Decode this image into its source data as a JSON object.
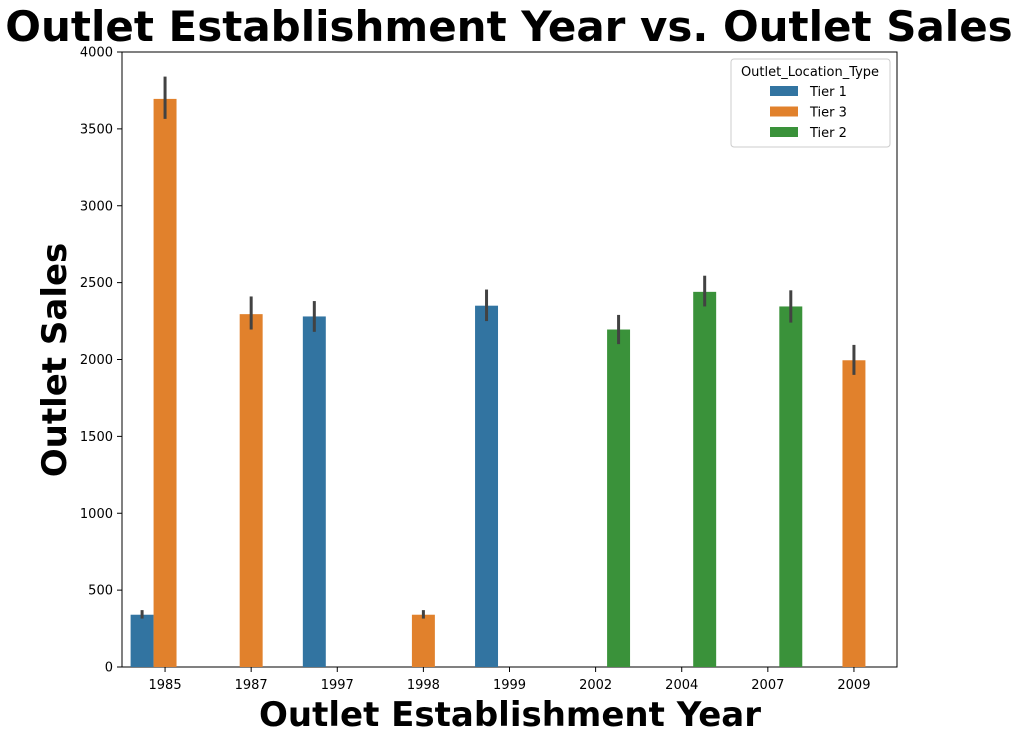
{
  "chart_data": {
    "type": "bar",
    "title": "Outlet Establishment Year vs. Outlet Sales",
    "xlabel": "Outlet Establishment Year",
    "ylabel": "Outlet Sales",
    "categories": [
      "1985",
      "1987",
      "1997",
      "1998",
      "1999",
      "2002",
      "2004",
      "2007",
      "2009"
    ],
    "ylim": [
      0,
      4000
    ],
    "yticks": [
      0,
      500,
      1000,
      1500,
      2000,
      2500,
      3000,
      3500,
      4000
    ],
    "legend": {
      "title": "Outlet_Location_Type",
      "placement": "top-right"
    },
    "series": [
      {
        "name": "Tier 1",
        "color": "#3274a1",
        "values": [
          340,
          null,
          2280,
          null,
          2350,
          null,
          null,
          null,
          null
        ],
        "err_low": [
          315,
          null,
          2180,
          null,
          2250,
          null,
          null,
          null,
          null
        ],
        "err_high": [
          370,
          null,
          2380,
          null,
          2455,
          null,
          null,
          null,
          null
        ]
      },
      {
        "name": "Tier 3",
        "color": "#e1812c",
        "values": [
          3695,
          2295,
          null,
          340,
          null,
          null,
          null,
          null,
          1995
        ],
        "err_low": [
          3565,
          2195,
          null,
          315,
          null,
          null,
          null,
          null,
          1900
        ],
        "err_high": [
          3840,
          2410,
          null,
          370,
          null,
          null,
          null,
          null,
          2095
        ]
      },
      {
        "name": "Tier 2",
        "color": "#3a923a",
        "values": [
          null,
          null,
          null,
          null,
          null,
          2195,
          2440,
          2345,
          null
        ],
        "err_low": [
          null,
          null,
          null,
          null,
          null,
          2100,
          2345,
          2240,
          null
        ],
        "err_high": [
          null,
          null,
          null,
          null,
          null,
          2290,
          2545,
          2450,
          null
        ]
      }
    ],
    "grid": false
  }
}
